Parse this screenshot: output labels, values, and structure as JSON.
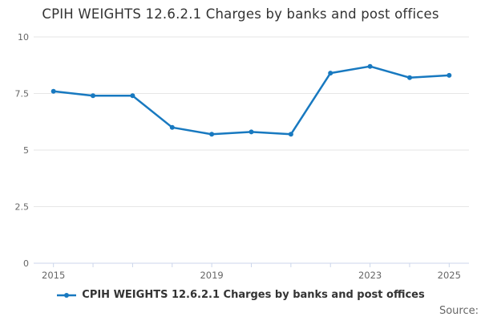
{
  "title": "CPIH WEIGHTS 12.6.2.1 Charges by banks and post offices",
  "legend": {
    "label": "CPIH WEIGHTS 12.6.2.1 Charges by banks and post offices"
  },
  "source_label": "Source:",
  "colors": {
    "series": "#1879c0",
    "grid": "#e6e6e6",
    "axis": "#ccd6eb",
    "tick_label": "#666666",
    "title_text": "#333333"
  },
  "chart_data": {
    "type": "line",
    "title": "CPIH WEIGHTS 12.6.2.1 Charges by banks and post offices",
    "x": [
      2015,
      2016,
      2017,
      2018,
      2019,
      2020,
      2021,
      2022,
      2023,
      2024,
      2025
    ],
    "series": [
      {
        "name": "CPIH WEIGHTS 12.6.2.1 Charges by banks and post offices",
        "values": [
          7.6,
          7.4,
          7.4,
          6.0,
          5.7,
          5.8,
          5.7,
          8.4,
          8.7,
          8.2,
          8.3
        ]
      }
    ],
    "xlabel": "",
    "ylabel": "",
    "ylim": [
      0,
      10
    ],
    "yticks": [
      0,
      2.5,
      5,
      7.5,
      10
    ],
    "ytick_labels": [
      "0",
      "2.5",
      "5",
      "7.5",
      "10"
    ],
    "xtick_labels": [
      {
        "i": 0,
        "label": "2015"
      },
      {
        "i": 4,
        "label": "2019"
      },
      {
        "i": 8,
        "label": "2023"
      },
      {
        "i": 10,
        "label": "2025"
      }
    ],
    "grid": "horizontal",
    "legend_position": "bottom",
    "marker": "circle"
  }
}
